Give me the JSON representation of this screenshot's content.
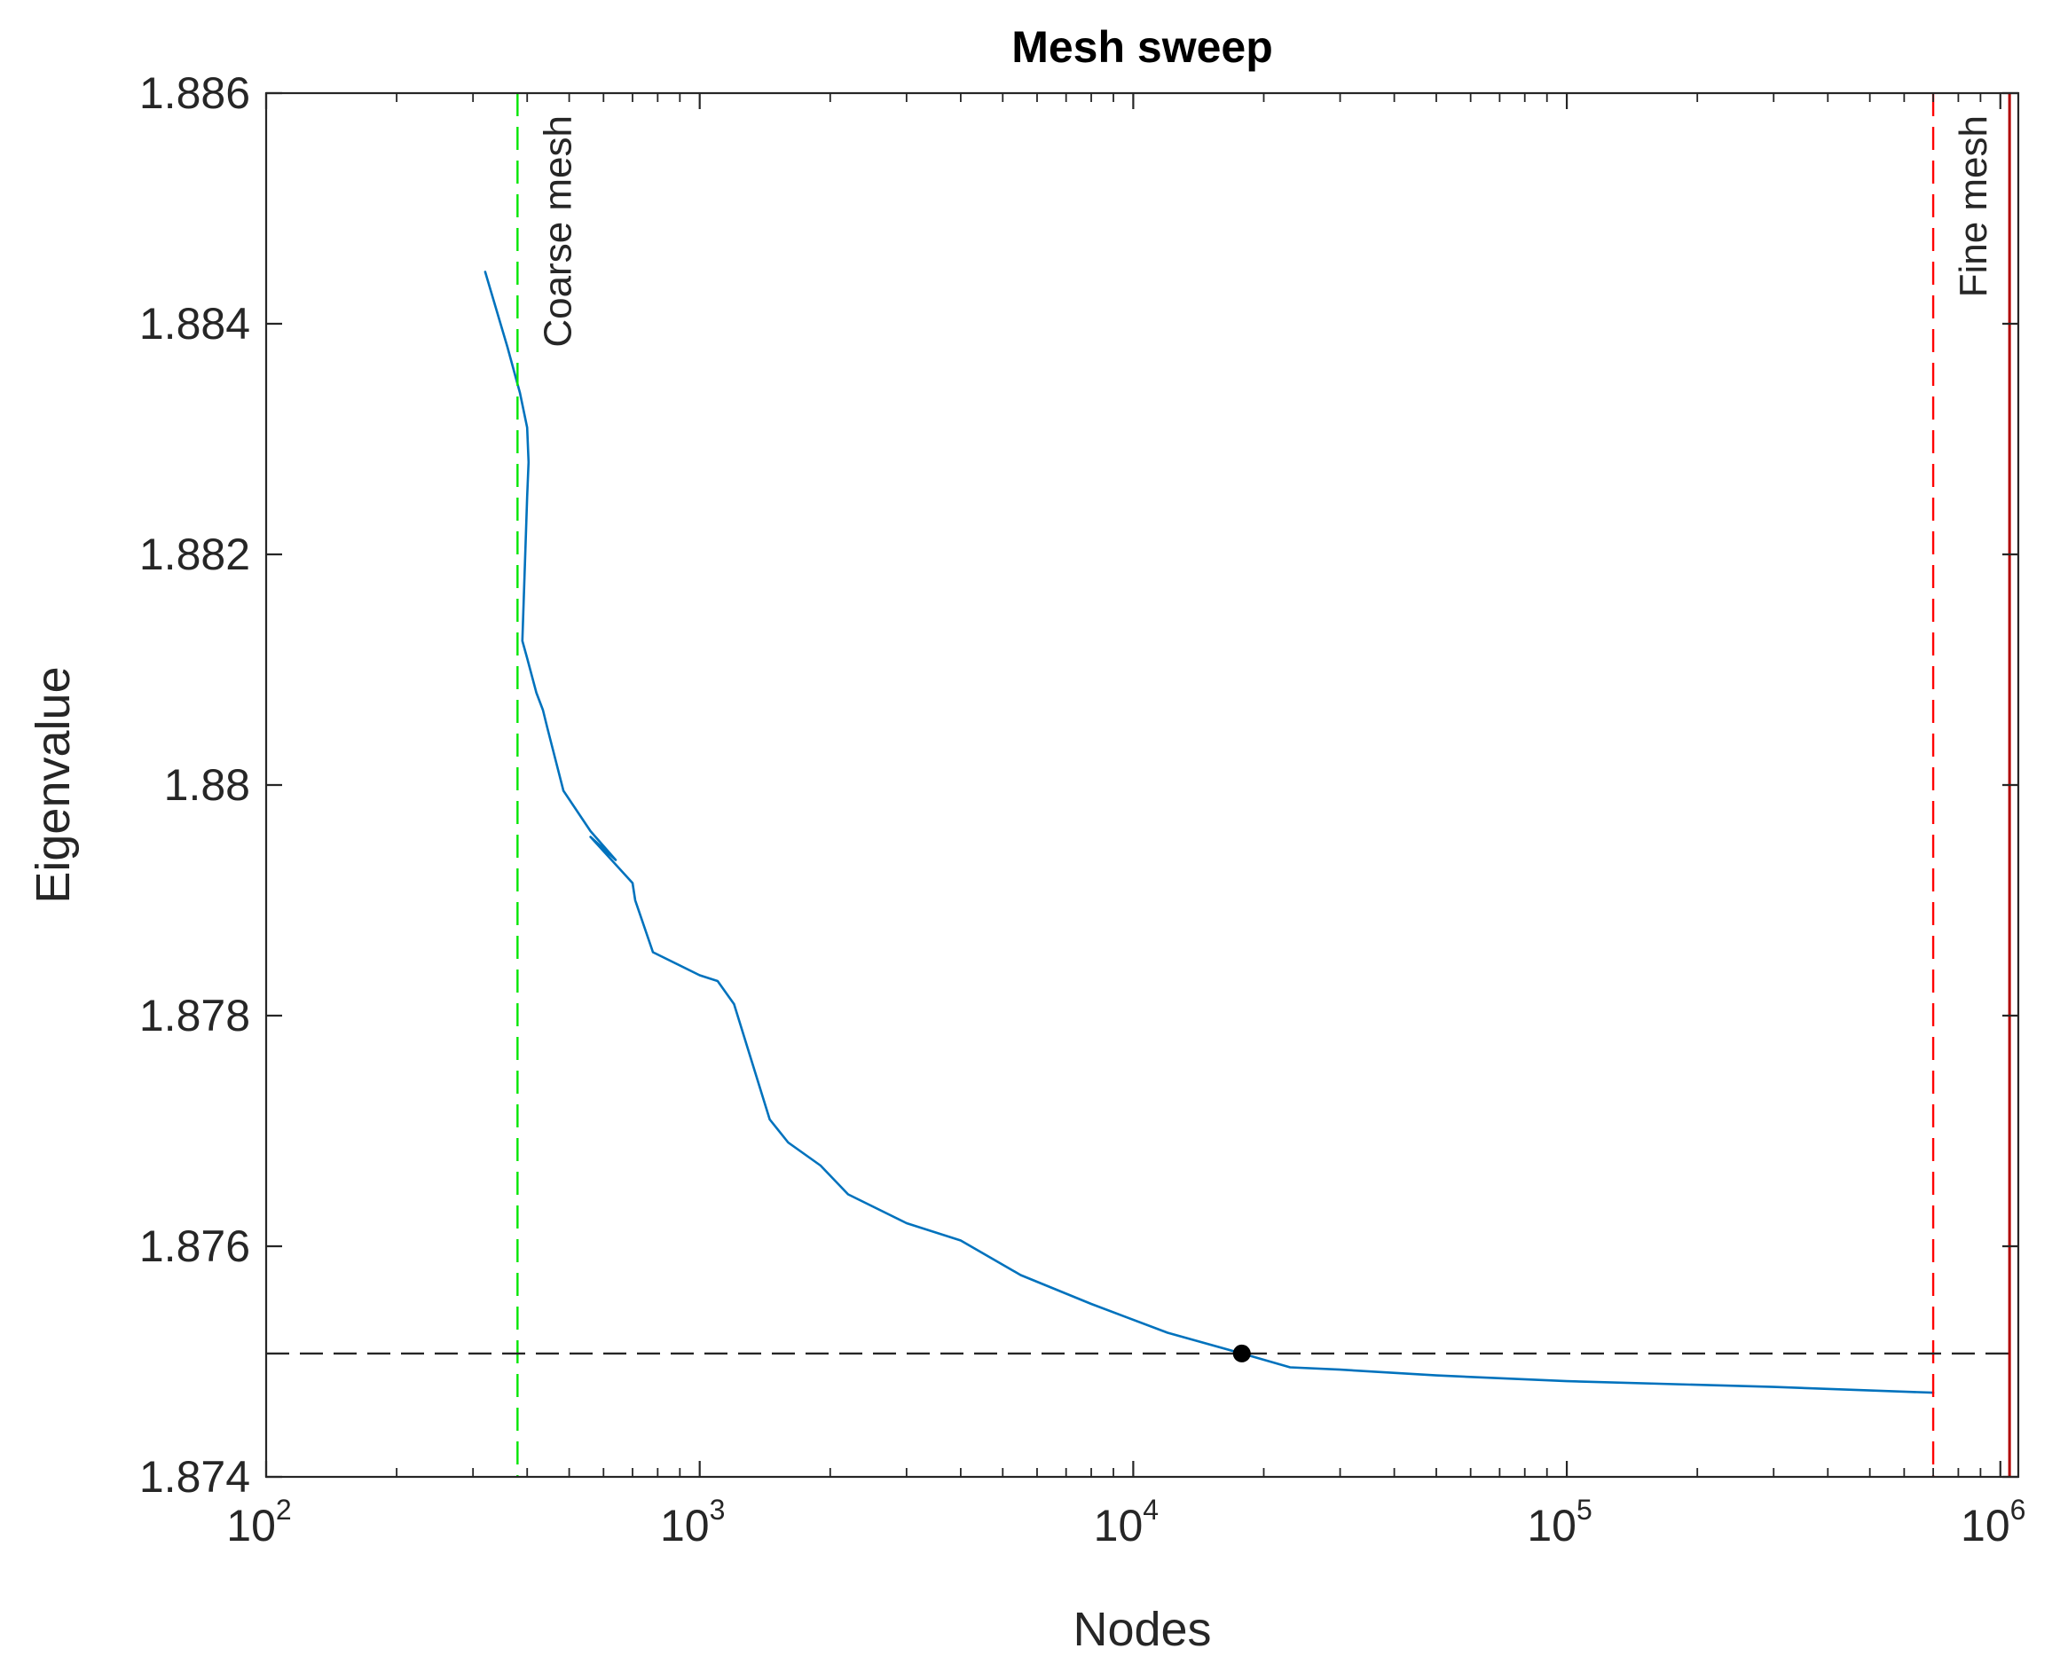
{
  "chart_data": {
    "type": "line",
    "title": "Mesh sweep",
    "xlabel": "Nodes",
    "ylabel": "Eigenvalue",
    "xscale": "log",
    "xlim": [
      100,
      1100000
    ],
    "ylim": [
      1.874,
      1.886
    ],
    "yticks": [
      {
        "value": 1.874,
        "label": "1.874"
      },
      {
        "value": 1.876,
        "label": "1.876"
      },
      {
        "value": 1.878,
        "label": "1.878"
      },
      {
        "value": 1.88,
        "label": "1.88"
      },
      {
        "value": 1.882,
        "label": "1.882"
      },
      {
        "value": 1.884,
        "label": "1.884"
      },
      {
        "value": 1.886,
        "label": "1.886"
      }
    ],
    "xticks": [
      {
        "value": 100,
        "base": "10",
        "exp": "2"
      },
      {
        "value": 1000,
        "base": "10",
        "exp": "3"
      },
      {
        "value": 10000,
        "base": "10",
        "exp": "4"
      },
      {
        "value": 100000,
        "base": "10",
        "exp": "5"
      },
      {
        "value": 1000000,
        "base": "10",
        "exp": "6"
      }
    ],
    "grid": false,
    "series": [
      {
        "color": "#0072bd",
        "x": [
          320,
          360,
          385,
          400,
          403,
          400,
          390,
          400,
          420,
          435,
          445,
          485,
          560,
          640,
          560,
          700,
          710,
          780,
          1000,
          1100,
          1200,
          1450,
          1600,
          1900,
          2200,
          3000,
          4000,
          5500,
          8000,
          12000,
          17800,
          23000,
          30000,
          50000,
          100000,
          300000,
          700000
        ],
        "y": [
          1.88445,
          1.8838,
          1.8834,
          1.8831,
          1.8828,
          1.8825,
          1.88125,
          1.8811,
          1.8808,
          1.88065,
          1.8805,
          1.87995,
          1.8796,
          1.87935,
          1.87955,
          1.87915,
          1.879,
          1.87855,
          1.87835,
          1.8783,
          1.8781,
          1.8771,
          1.8769,
          1.8767,
          1.87645,
          1.8762,
          1.87605,
          1.87575,
          1.8755,
          1.87525,
          1.87507,
          1.87495,
          1.87493,
          1.87488,
          1.87483,
          1.87478,
          1.87473
        ]
      }
    ],
    "highlight_point": {
      "x": 17800,
      "y": 1.87507,
      "color": "#000000"
    },
    "reference_lines": [
      {
        "orientation": "vertical",
        "x": 380,
        "color": "#00e600",
        "label": "Coarse mesh"
      },
      {
        "orientation": "vertical",
        "x": 700000,
        "color": "#ff0000",
        "label": "Fine mesh"
      },
      {
        "orientation": "horizontal",
        "y": 1.87507,
        "color": "#262626",
        "label": ""
      }
    ],
    "extra_vertical_line": {
      "x": 1050000,
      "color": "#b00000"
    }
  }
}
